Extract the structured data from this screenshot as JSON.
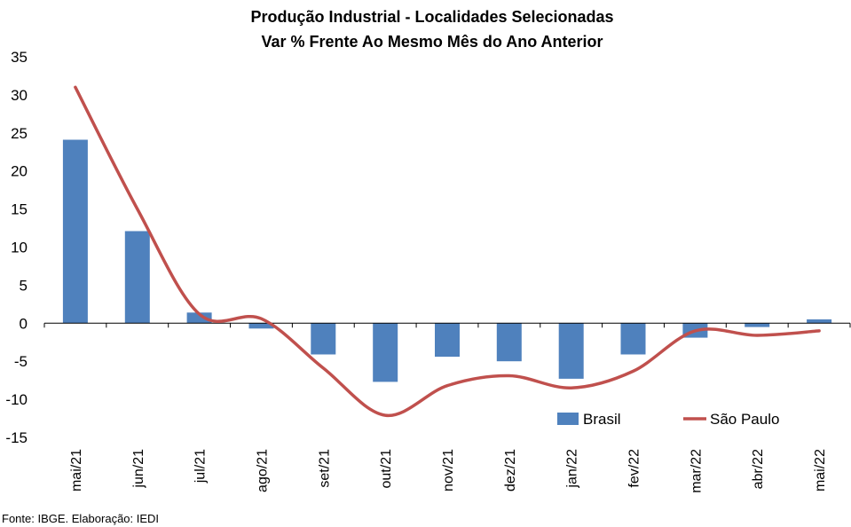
{
  "chart_data": {
    "type": "bar",
    "title": [
      "Produção Industrial - Localidades Selecionadas",
      "Var % Frente Ao Mesmo Mês do Ano Anterior"
    ],
    "categories": [
      "mai/21",
      "jun/21",
      "jul/21",
      "ago/21",
      "set/21",
      "out/21",
      "nov/21",
      "dez/21",
      "jan/22",
      "fev/22",
      "mar/22",
      "abr/22",
      "mai/22"
    ],
    "series": [
      {
        "name": "Brasil",
        "type": "bar",
        "color": "#4F81BD",
        "values": [
          24.1,
          12.1,
          1.4,
          -0.7,
          -4.1,
          -7.7,
          -4.4,
          -5.0,
          -7.3,
          -4.1,
          -1.9,
          -0.5,
          0.5
        ]
      },
      {
        "name": "São Paulo",
        "type": "line",
        "color": "#C0504D",
        "values": [
          31.0,
          15.0,
          1.2,
          0.6,
          -5.9,
          -12.1,
          -8.2,
          -6.9,
          -8.5,
          -6.3,
          -1.0,
          -1.6,
          -1.0
        ]
      }
    ],
    "ylim": [
      -15,
      35
    ],
    "yticks": [
      35,
      30,
      25,
      20,
      15,
      10,
      5,
      0,
      -5,
      -10,
      -15
    ],
    "grid": false,
    "legend_position": "bottom-right"
  },
  "source_note": "Fonte: IBGE. Elaboração: IEDI"
}
